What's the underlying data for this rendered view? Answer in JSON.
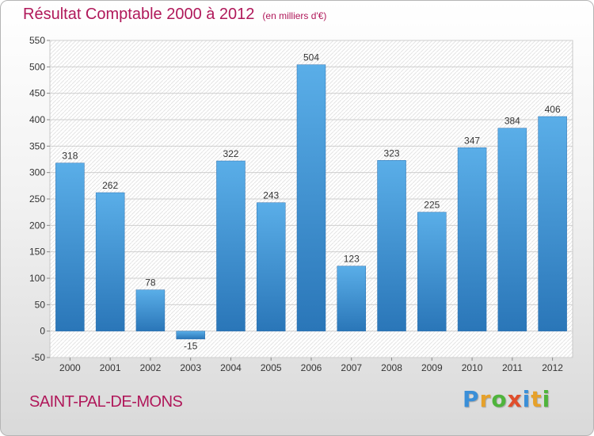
{
  "title": "Résultat Comptable 2000 à 2012",
  "unit": "(en milliers d'€)",
  "commune": "SAINT-PAL-DE-MONS",
  "logo": [
    "P",
    "r",
    "o",
    "x",
    "i",
    "t",
    "i"
  ],
  "colors": {
    "bar": "#3f93d4",
    "title": "#b0185a"
  },
  "chart_data": {
    "type": "bar",
    "categories": [
      "2000",
      "2001",
      "2002",
      "2003",
      "2004",
      "2005",
      "2006",
      "2007",
      "2008",
      "2009",
      "2010",
      "2011",
      "2012"
    ],
    "values": [
      318,
      262,
      78,
      -15,
      322,
      243,
      504,
      123,
      323,
      225,
      347,
      384,
      406
    ],
    "ylim": [
      -50,
      550
    ],
    "yticks": [
      -50,
      0,
      50,
      100,
      150,
      200,
      250,
      300,
      350,
      400,
      450,
      500,
      550
    ],
    "grid": true,
    "xlabel": "",
    "ylabel": ""
  }
}
